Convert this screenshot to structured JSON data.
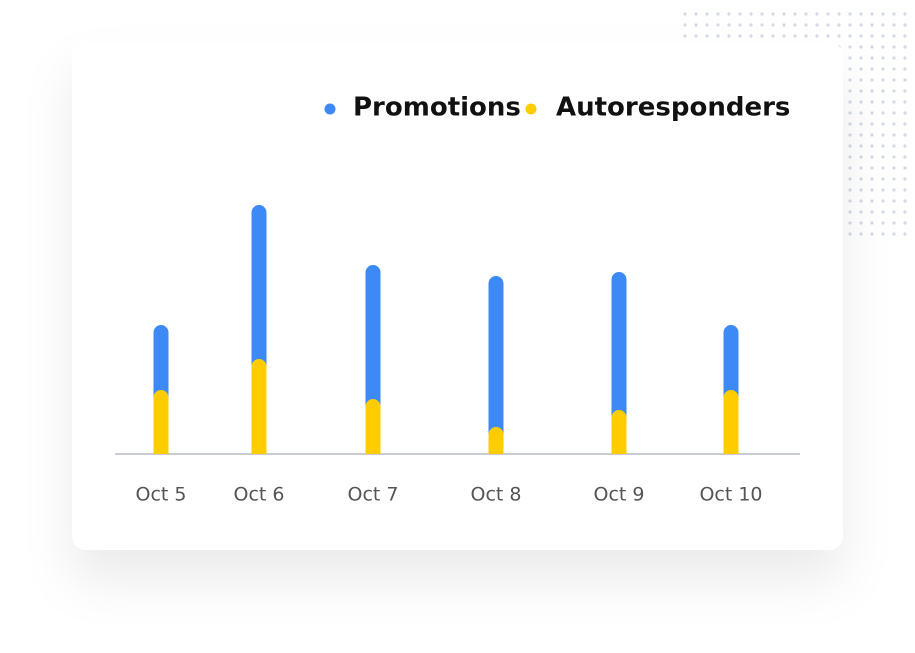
{
  "chart_data": {
    "type": "bar",
    "overlay": true,
    "categories": [
      "Oct 5",
      "Oct 6",
      "Oct 7",
      "Oct 8",
      "Oct 9",
      "Oct 10"
    ],
    "series": [
      {
        "name": "Promotions",
        "color": "#3d8af7",
        "values": [
          129,
          249,
          189,
          178,
          182,
          129
        ]
      },
      {
        "name": "Autoresponders",
        "color": "#ffcc00",
        "values": [
          64,
          95,
          55,
          27,
          44,
          64
        ]
      }
    ],
    "ylim": [
      0,
      260
    ]
  }
}
